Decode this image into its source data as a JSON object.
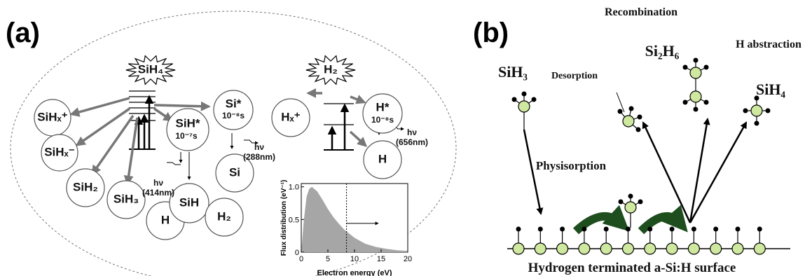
{
  "panel_a": {
    "label": "(a)",
    "sources": [
      "SiH₄",
      "H₂"
    ],
    "nodes": [
      "SiHₓ⁺",
      "SiHₓ⁻",
      "SiH₂",
      "SiH₃",
      "H",
      "SiH*",
      "SiH",
      "Si*",
      "Si",
      "H₂",
      "Hₓ⁺",
      "H*",
      "H"
    ],
    "lifetimes": [
      "10⁻⁷s",
      "10⁻⁸s",
      "10⁻⁸s"
    ],
    "emissions": [
      {
        "photon": "hν",
        "wavelength": "(414nm)"
      },
      {
        "photon": "hν",
        "wavelength": "(288nm)"
      },
      {
        "photon": "hν",
        "wavelength": "(656nm)"
      }
    ]
  },
  "inset_chart": {
    "type": "area",
    "xlabel": "Electron energy (eV)",
    "ylabel": "Flux distribution (eV⁻¹)",
    "x": [
      0,
      0.5,
      1,
      1.5,
      2,
      3,
      4,
      5,
      6,
      7,
      8,
      10,
      12,
      14,
      16,
      18,
      20
    ],
    "values": [
      0,
      0.5,
      0.85,
      0.97,
      1,
      0.93,
      0.8,
      0.66,
      0.54,
      0.44,
      0.35,
      0.22,
      0.13,
      0.08,
      0.05,
      0.03,
      0.02
    ],
    "color": "#a6a6a6",
    "cutoff": 8.5,
    "xlim": [
      0,
      20
    ],
    "ylim": [
      0,
      1.05
    ],
    "xticks": [
      0,
      5,
      10,
      15,
      20
    ],
    "yticks": [
      0,
      0.5,
      {
        "value": 1,
        "label": "1.0"
      }
    ]
  },
  "panel_b": {
    "label": "(b)",
    "texts": [
      "Recombination",
      "H abstraction",
      "Si₂H₆",
      "SiH₄",
      "SiH₃",
      "Desorption",
      "Physisorption",
      "Hydrogen terminated a-Si:H surface"
    ]
  }
}
